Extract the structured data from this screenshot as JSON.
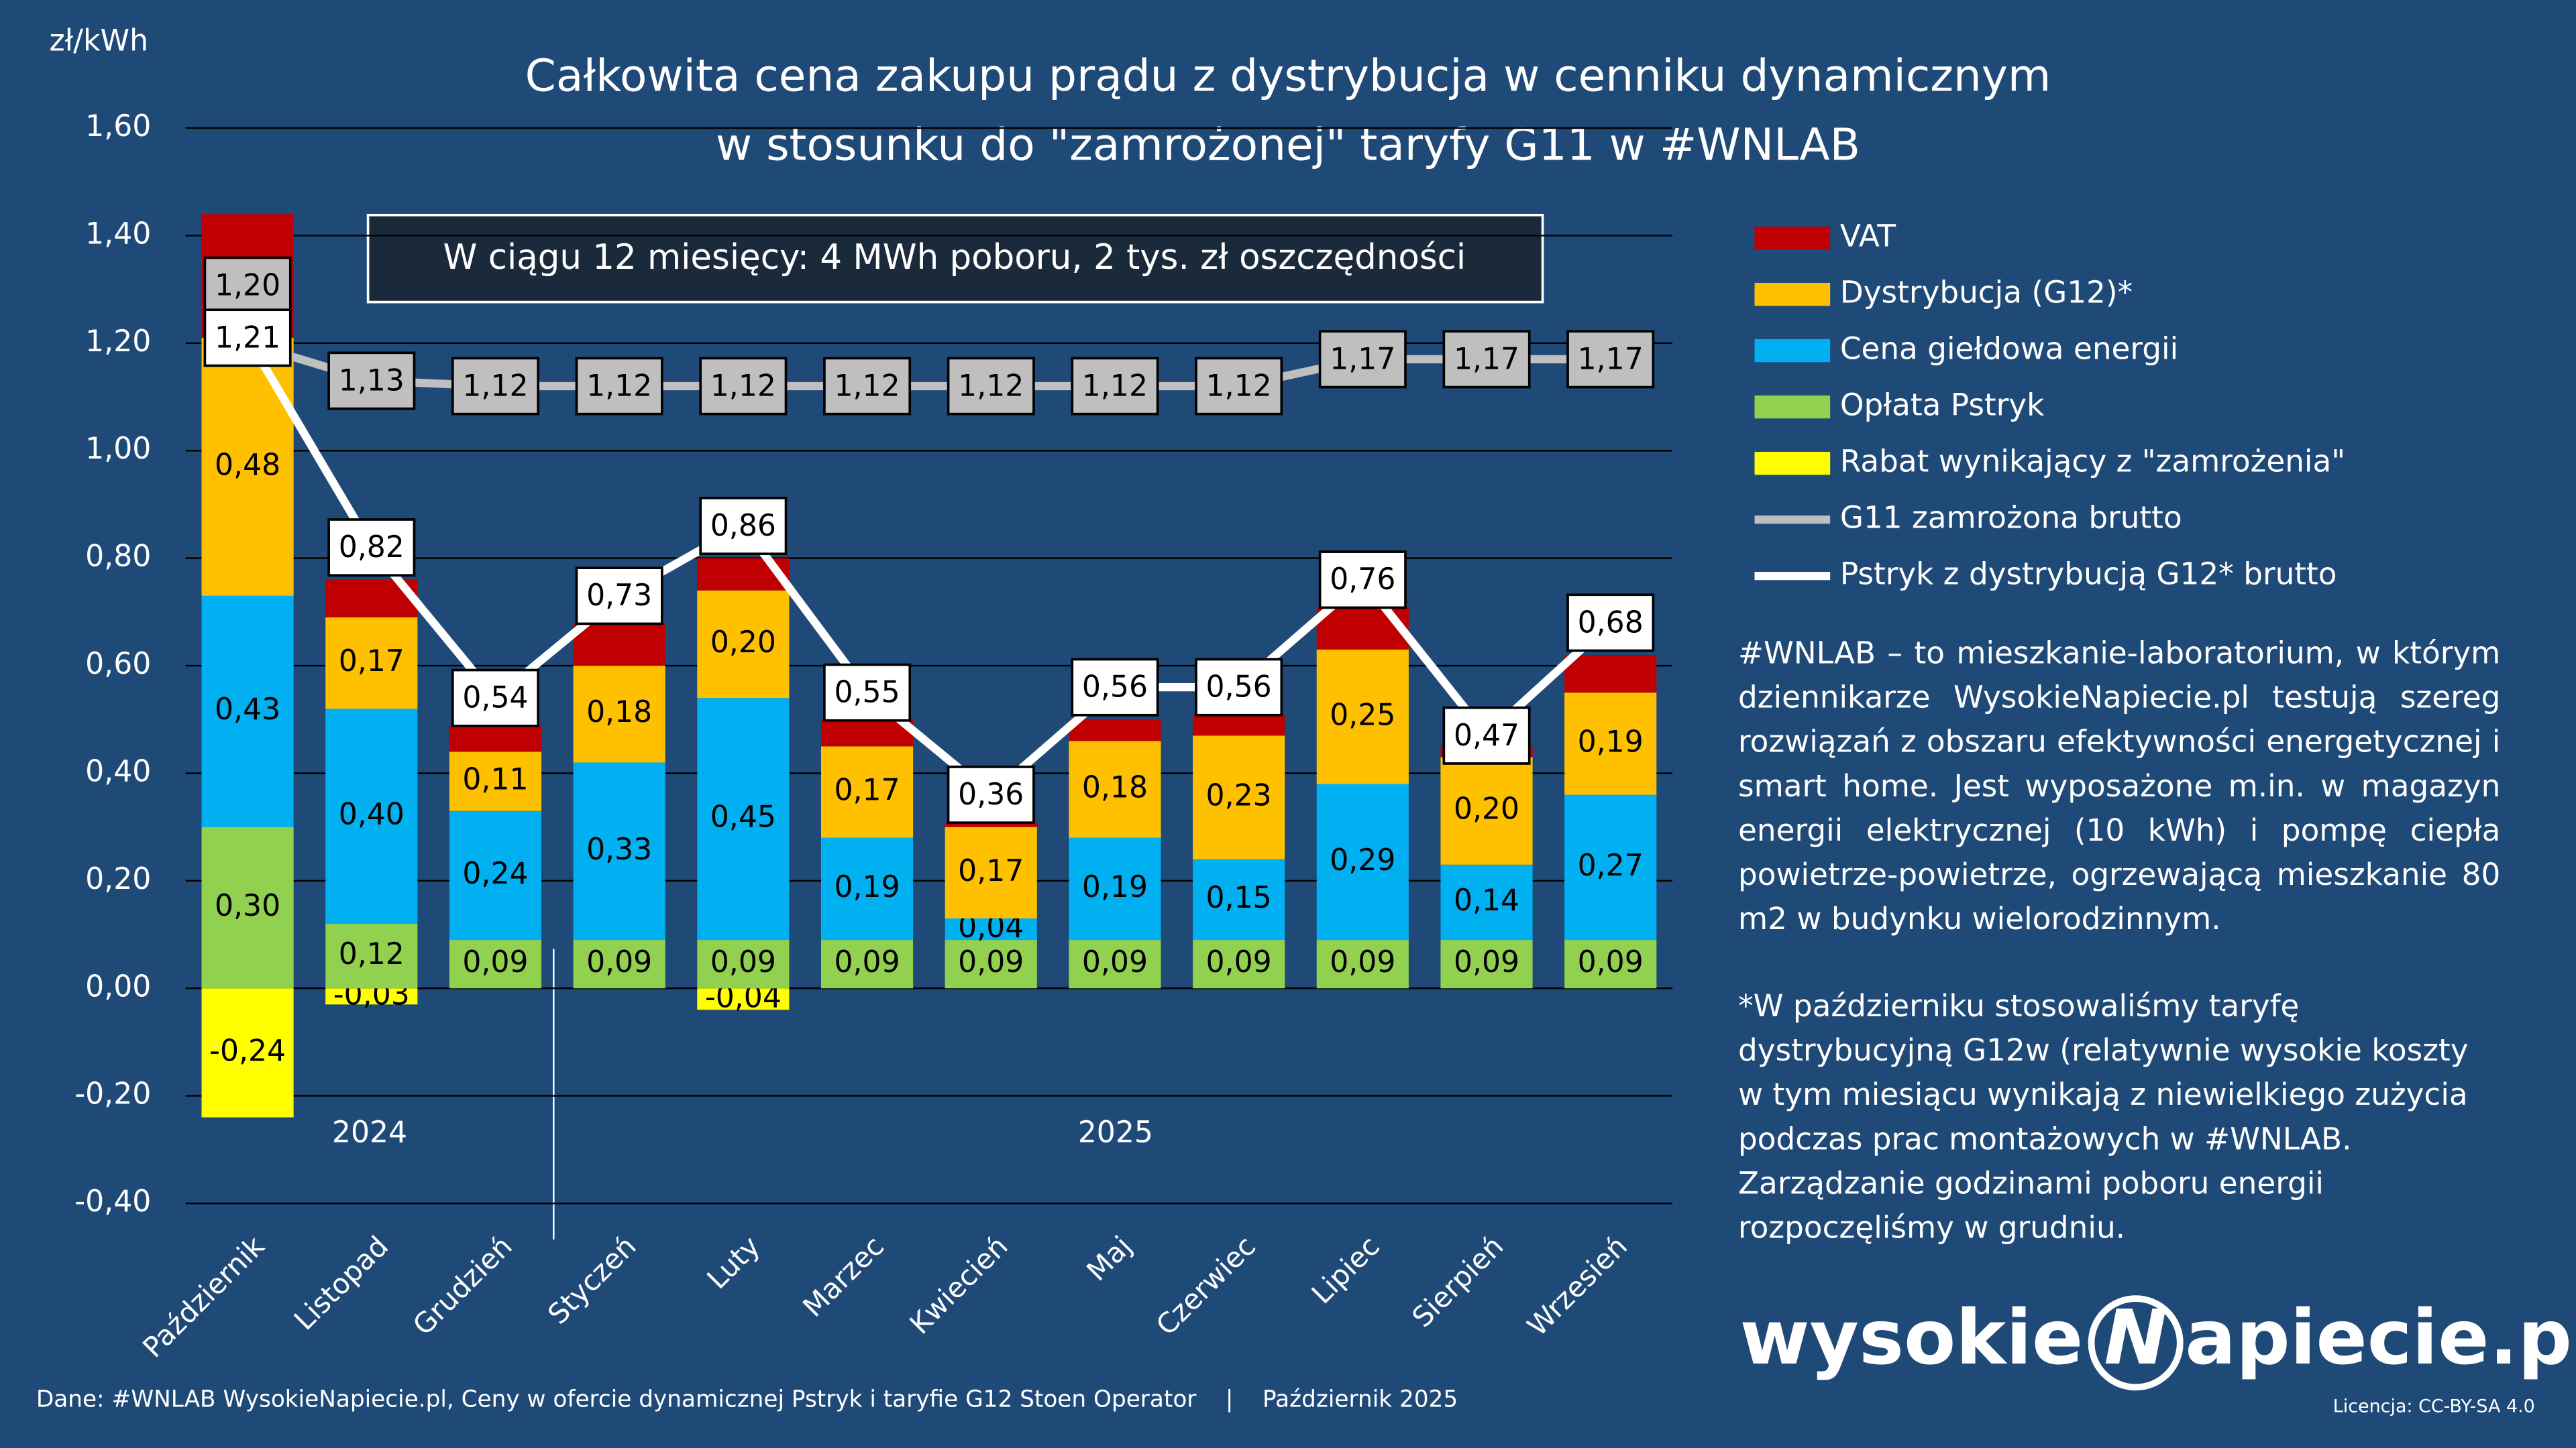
{
  "chart_data": {
    "type": "bar",
    "stacked": true,
    "title": [
      "Całkowita cena zakupu prądu z dystrybucja w cenniku dynamicznym",
      "w stosunku do \"zamrożonej\" taryfy G11 w #WNLAB"
    ],
    "y_label": "zł/kWh",
    "annotation": "W ciągu 12 miesięcy: 4 MWh poboru, 2 tys. zł oszczędności",
    "categories": [
      "Październik",
      "Listopad",
      "Grudzień",
      "Styczeń",
      "Luty",
      "Marzec",
      "Kwiecień",
      "Maj",
      "Czerwiec",
      "Lipiec",
      "Sierpień",
      "Wrzesień"
    ],
    "year_labels": [
      "2024",
      "2025"
    ],
    "ylim": [
      -0.4,
      1.6
    ],
    "yticks": [
      {
        "value": -0.4,
        "label": "-0,40"
      },
      {
        "value": -0.2,
        "label": "-0,20"
      },
      {
        "value": 0,
        "label": "0,00"
      },
      {
        "value": 0.2,
        "label": "0,20"
      },
      {
        "value": 0.4,
        "label": "0,40"
      },
      {
        "value": 0.6,
        "label": "0,60"
      },
      {
        "value": 0.8,
        "label": "0,80"
      },
      {
        "value": 1.0,
        "label": "1,00"
      },
      {
        "value": 1.2,
        "label": "1,20"
      },
      {
        "value": 1.4,
        "label": "1,40"
      },
      {
        "value": 1.6,
        "label": "1,60"
      }
    ],
    "grid": true,
    "series": [
      {
        "name": "VAT",
        "type": "bar",
        "color": "#c00000",
        "values": [
          0.23,
          0.07,
          0.05,
          0.08,
          0.06,
          0.05,
          0.01,
          0.04,
          0.04,
          0.08,
          0.02,
          0.07
        ]
      },
      {
        "name": "Dystrybucja (G12)*",
        "type": "bar",
        "color": "#ffc000",
        "values": [
          0.48,
          0.17,
          0.11,
          0.18,
          0.2,
          0.17,
          0.17,
          0.18,
          0.23,
          0.25,
          0.2,
          0.19
        ],
        "value_labels": [
          "0,48",
          "0,17",
          "0,11",
          "0,18",
          "0,20",
          "0,17",
          "0,17",
          "0,18",
          "0,23",
          "0,25",
          "0,20",
          "0,19"
        ]
      },
      {
        "name": "Cena giełdowa energii",
        "type": "bar",
        "color": "#00b0f0",
        "values": [
          0.43,
          0.4,
          0.24,
          0.33,
          0.45,
          0.19,
          0.04,
          0.19,
          0.15,
          0.29,
          0.14,
          0.27
        ],
        "value_labels": [
          "0,43",
          "0,40",
          "0,24",
          "0,33",
          "0,45",
          "0,19",
          "0,04",
          "0,19",
          "0,15",
          "0,29",
          "0,14",
          "0,27"
        ]
      },
      {
        "name": "Opłata Pstryk",
        "type": "bar",
        "color": "#92d050",
        "values": [
          0.3,
          0.12,
          0.09,
          0.09,
          0.09,
          0.09,
          0.09,
          0.09,
          0.09,
          0.09,
          0.09,
          0.09
        ],
        "value_labels": [
          "0,30",
          "0,12",
          "0,09",
          "0,09",
          "0,09",
          "0,09",
          "0,09",
          "0,09",
          "0,09",
          "0,09",
          "0,09",
          "0,09"
        ]
      },
      {
        "name": "Rabat wynikający z \"zamrożenia\"",
        "type": "bar",
        "color": "#ffff00",
        "values": [
          -0.24,
          -0.03,
          null,
          null,
          -0.04,
          null,
          null,
          null,
          null,
          null,
          null,
          null
        ],
        "value_labels": [
          "-0,24",
          "-0,03",
          null,
          null,
          "-0,04",
          null,
          null,
          null,
          null,
          null,
          null,
          null
        ]
      },
      {
        "name": "G11 zamrożona brutto",
        "type": "line",
        "color": "#bfbfbf",
        "values": [
          1.2,
          1.13,
          1.12,
          1.12,
          1.12,
          1.12,
          1.12,
          1.12,
          1.12,
          1.17,
          1.17,
          1.17
        ],
        "value_labels": [
          "1,20",
          "1,13",
          "1,12",
          "1,12",
          "1,12",
          "1,12",
          "1,12",
          "1,12",
          "1,12",
          "1,17",
          "1,17",
          "1,17"
        ]
      },
      {
        "name": "Pstryk z dystrybucją G12* brutto",
        "type": "line",
        "color": "#ffffff",
        "values": [
          1.21,
          0.82,
          0.54,
          0.73,
          0.86,
          0.55,
          0.36,
          0.56,
          0.56,
          0.76,
          0.47,
          0.68
        ],
        "value_labels": [
          "1,21",
          "0,82",
          "0,54",
          "0,73",
          "0,86",
          "0,55",
          "0,36",
          "0,56",
          "0,56",
          "0,76",
          "0,47",
          "0,68"
        ]
      }
    ],
    "description": "#WNLAB – to mieszkanie-laboratorium, w którym dziennikarze WysokieNapiecie.pl testują szereg rozwiązań z obszaru efektywności energetycznej i smart home. Jest wyposażone m.in. w magazyn energii elektrycznej (10 kWh) i pompę ciepła powietrze-powietrze, ogrzewającą mieszkanie 80 m2 w budynku wielorodzinnym.",
    "footnote": "*W październiku stosowaliśmy taryfę dystrybucyjną G12w (relatywnie wysokie koszty w tym miesiącu wynikają z niewielkiego zużycia podczas prac montażowych w #WNLAB. Zarządzanie godzinami poboru energii rozpoczęliśmy w grudniu.",
    "source": "Dane: #WNLAB WysokieNapiecie.pl, Ceny w ofercie dynamicznej Pstryk i taryfie G12 Stoen Operator    |    Październik 2025",
    "logo": [
      "wysokie",
      "N",
      "apiecie.pl"
    ],
    "license": "Licencja: CC-BY-SA 4.0"
  }
}
